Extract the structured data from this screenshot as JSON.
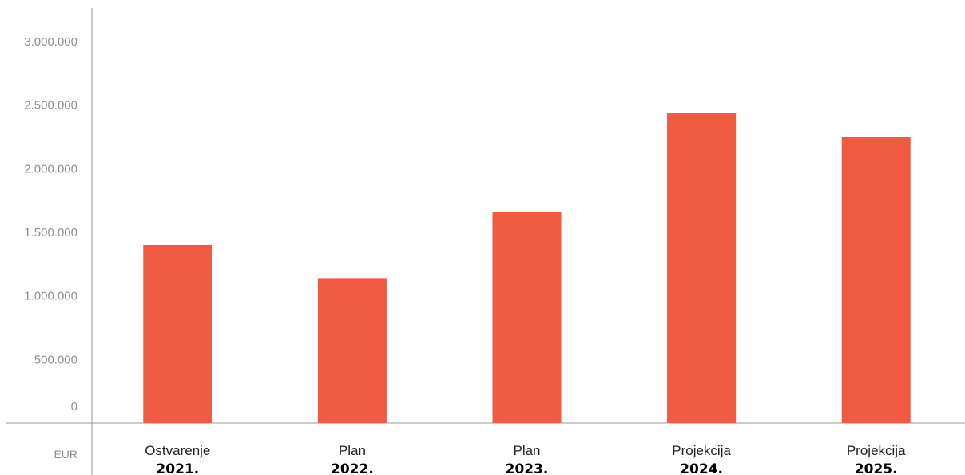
{
  "chart_data": {
    "type": "bar",
    "categories": [
      "Ostvarenje",
      "Plan",
      "Plan",
      "Projekcija",
      "Projekcija"
    ],
    "years": [
      "2021.",
      "2022.",
      "2023.",
      "2024.",
      "2025."
    ],
    "values": [
      1400000,
      1140000,
      1660000,
      2440000,
      2250000
    ],
    "unit": "EUR",
    "ylim": [
      0,
      3000000
    ],
    "yticks": [
      0,
      500000,
      1000000,
      1500000,
      2000000,
      2500000,
      3000000
    ],
    "ytick_labels": [
      "0",
      "500.000",
      "1.000.000",
      "1.500.000",
      "2.000.000",
      "2.500.000",
      "3.000.000"
    ],
    "grid": false,
    "colors": {
      "bar": "#f05a40",
      "axis": "#9a9a9a",
      "tick_text": "#8e8e8e",
      "category_text": "#222222",
      "year_text": "#000000"
    }
  }
}
